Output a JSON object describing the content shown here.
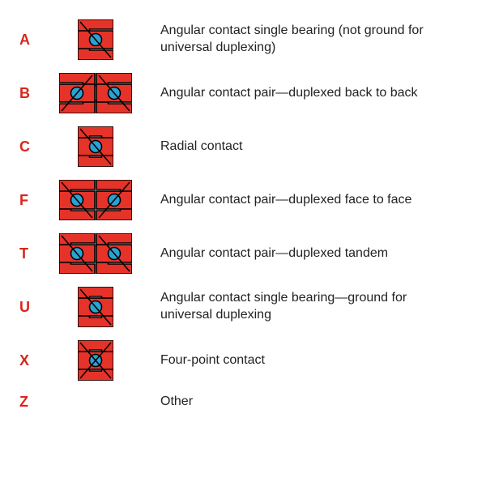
{
  "colors": {
    "code": "#d9261c",
    "text": "#222222",
    "outer_ring": "#e63329",
    "inner_ring": "#e63329",
    "ball": "#29a3d4",
    "cage_gap": "#ffffff",
    "slash": "#000000",
    "outline": "#000000"
  },
  "dimensions": {
    "single_w": 44,
    "single_h": 50,
    "pair_gap": 2,
    "stroke": 1.6,
    "slash_stroke": 1.6
  },
  "rows": [
    {
      "code": "A",
      "icon": "single_angular",
      "desc": "Angular contact single bearing (not ground for universal duplexing)"
    },
    {
      "code": "B",
      "icon": "pair_back_to_back",
      "desc": "Angular contact pair—duplexed back to back"
    },
    {
      "code": "C",
      "icon": "single_radial",
      "desc": "Radial contact"
    },
    {
      "code": "F",
      "icon": "pair_face_to_face",
      "desc": "Angular contact pair—duplexed face to face"
    },
    {
      "code": "T",
      "icon": "pair_tandem",
      "desc": "Angular contact pair—duplexed tandem"
    },
    {
      "code": "U",
      "icon": "single_angular_u",
      "desc": "Angular contact single bearing—ground for universal duplexing"
    },
    {
      "code": "X",
      "icon": "single_fourpoint",
      "desc": "Four-point contact"
    },
    {
      "code": "Z",
      "icon": "none",
      "desc": "Other"
    }
  ]
}
